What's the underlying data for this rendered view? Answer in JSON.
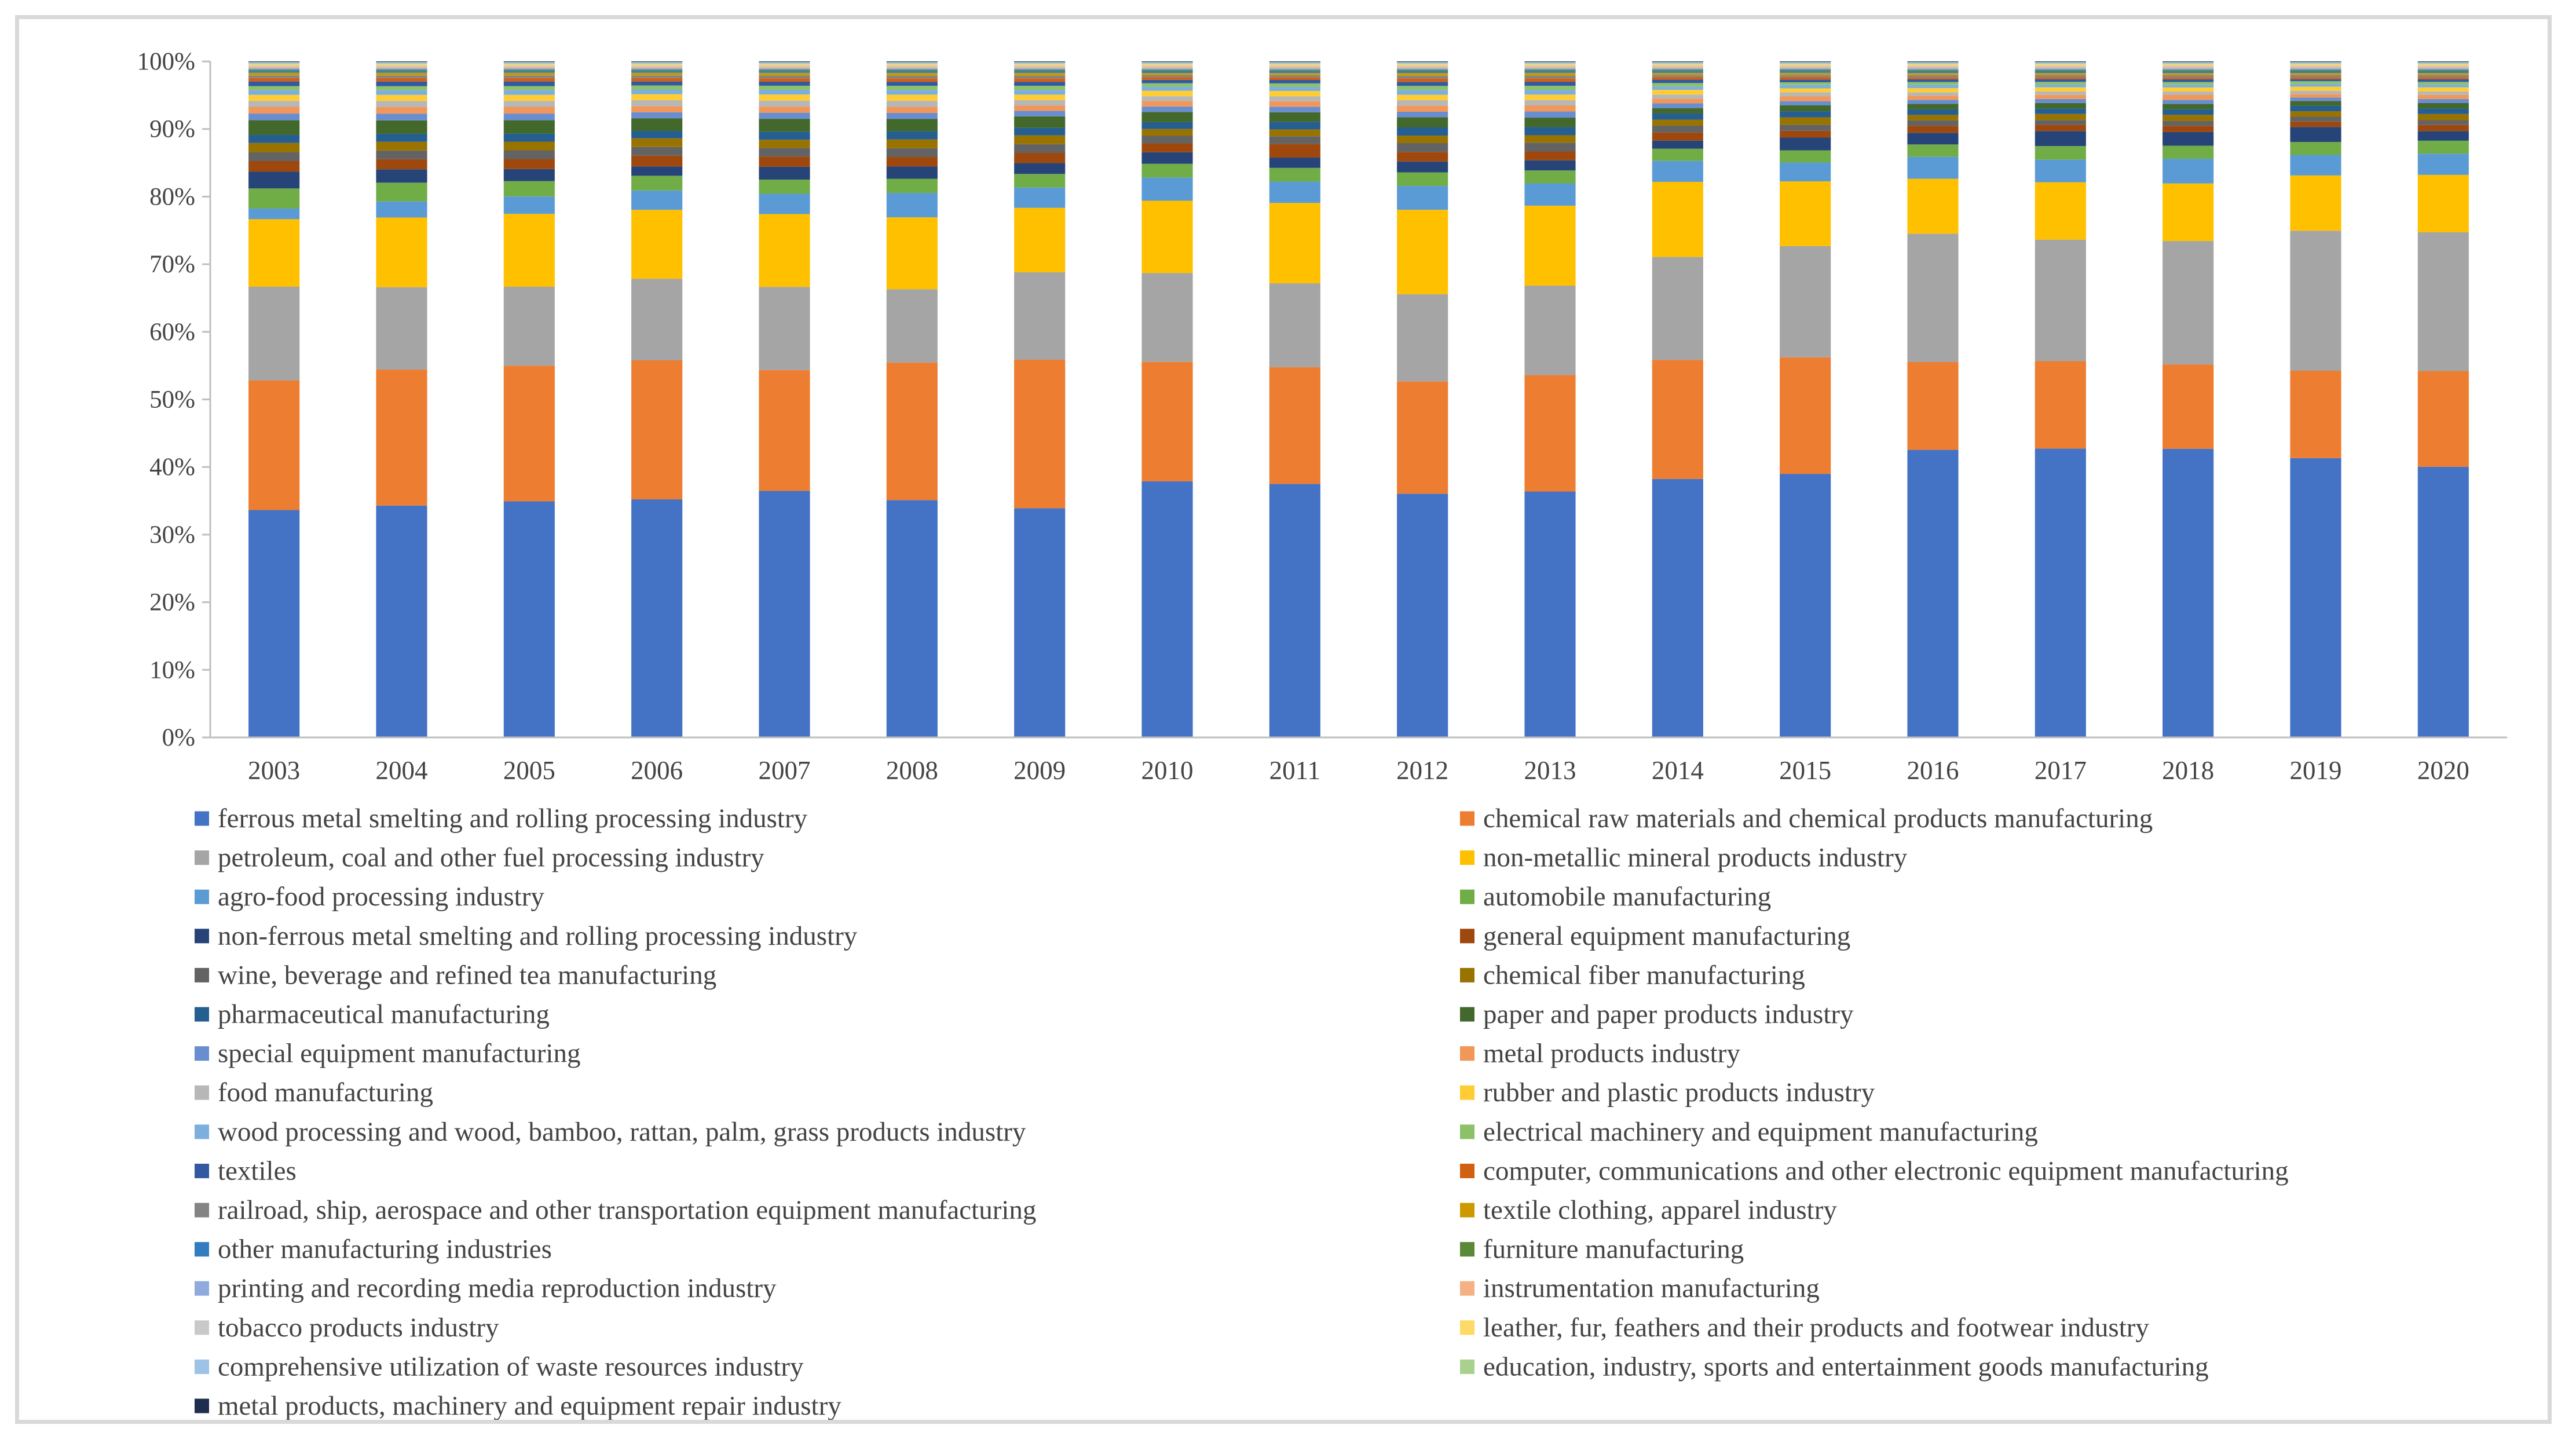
{
  "chart_data": {
    "type": "bar",
    "stacked": "percent",
    "title": "",
    "xlabel": "",
    "ylabel": "",
    "ylim": [
      0,
      100
    ],
    "y_ticks": [
      "0%",
      "10%",
      "20%",
      "30%",
      "40%",
      "50%",
      "60%",
      "70%",
      "80%",
      "90%",
      "100%"
    ],
    "categories": [
      "2003",
      "2004",
      "2005",
      "2006",
      "2007",
      "2008",
      "2009",
      "2010",
      "2011",
      "2012",
      "2013",
      "2014",
      "2015",
      "2016",
      "2017",
      "2018",
      "2019",
      "2020"
    ],
    "series": [
      {
        "name": "ferrous metal smelting and rolling processing industry",
        "color": "#4472c4",
        "values": [
          34.0,
          34.6,
          35.3,
          35.6,
          36.5,
          35.0,
          33.8,
          37.5,
          36.9,
          35.8,
          36.3,
          38.2,
          39.1,
          41.9,
          42.3,
          42.1,
          40.9,
          39.6
        ]
      },
      {
        "name": "chemical raw materials and chemical products manufacturing",
        "color": "#ed7d31",
        "values": [
          19.4,
          20.3,
          20.3,
          20.8,
          17.9,
          20.3,
          21.9,
          17.5,
          17.0,
          16.5,
          17.2,
          17.6,
          17.3,
          12.8,
          12.8,
          12.3,
          12.8,
          14.0
        ]
      },
      {
        "name": "petroleum, coal and other fuel processing industry",
        "color": "#a5a5a5",
        "values": [
          14.0,
          12.3,
          11.8,
          12.2,
          12.3,
          10.8,
          12.9,
          13.0,
          12.2,
          12.8,
          13.2,
          15.2,
          16.5,
          18.7,
          17.8,
          18.0,
          20.5,
          20.3
        ]
      },
      {
        "name": "non-metallic mineral products industry",
        "color": "#ffc000",
        "values": [
          10.1,
          10.4,
          10.9,
          10.3,
          10.8,
          10.6,
          9.5,
          10.6,
          11.7,
          12.4,
          11.8,
          11.1,
          9.6,
          8.0,
          8.4,
          8.4,
          8.1,
          8.4
        ]
      },
      {
        "name": "agro-food processing industry",
        "color": "#5b9bd5",
        "values": [
          1.6,
          2.4,
          2.6,
          2.9,
          3.0,
          3.6,
          3.0,
          3.4,
          3.1,
          3.5,
          3.3,
          3.1,
          2.8,
          3.2,
          3.3,
          3.6,
          3.0,
          3.1
        ]
      },
      {
        "name": "automobile manufacturing",
        "color": "#70ad47",
        "values": [
          3.0,
          2.8,
          2.3,
          2.2,
          2.1,
          2.1,
          2.0,
          2.0,
          2.0,
          2.0,
          1.9,
          1.8,
          1.8,
          1.8,
          2.0,
          1.9,
          1.9,
          1.9
        ]
      },
      {
        "name": "non-ferrous metal smelting and rolling processing industry",
        "color": "#264478",
        "values": [
          2.5,
          2.0,
          1.8,
          1.4,
          1.9,
          1.8,
          1.6,
          1.7,
          1.5,
          1.6,
          1.5,
          1.2,
          1.9,
          1.7,
          2.2,
          2.0,
          2.2,
          1.4
        ]
      },
      {
        "name": "general equipment manufacturing",
        "color": "#9e480e",
        "values": [
          1.6,
          1.5,
          1.5,
          1.6,
          1.5,
          1.4,
          1.5,
          1.3,
          2.0,
          1.4,
          1.3,
          1.2,
          1.0,
          1.0,
          0.9,
          0.9,
          0.8,
          0.9
        ]
      },
      {
        "name": "wine, beverage and refined tea manufacturing",
        "color": "#636363",
        "values": [
          1.3,
          1.3,
          1.3,
          1.3,
          1.3,
          1.3,
          1.3,
          1.1,
          1.1,
          1.3,
          1.3,
          1.0,
          0.9,
          0.8,
          0.7,
          0.7,
          0.7,
          0.7
        ]
      },
      {
        "name": "chemical fiber manufacturing",
        "color": "#997300",
        "values": [
          1.4,
          1.3,
          1.3,
          1.3,
          1.2,
          1.3,
          1.3,
          1.0,
          1.0,
          1.1,
          1.1,
          0.9,
          1.1,
          0.8,
          0.9,
          0.9,
          0.8,
          0.9
        ]
      },
      {
        "name": "pharmaceutical manufacturing",
        "color": "#255e91",
        "values": [
          1.2,
          1.2,
          1.2,
          1.1,
          1.2,
          1.2,
          1.1,
          1.0,
          1.1,
          1.2,
          1.2,
          0.9,
          0.9,
          0.8,
          0.8,
          0.8,
          0.8,
          0.8
        ]
      },
      {
        "name": "paper and paper products industry",
        "color": "#43682b",
        "values": [
          2.2,
          2.0,
          2.0,
          1.9,
          1.9,
          1.8,
          1.7,
          1.5,
          1.4,
          1.5,
          1.4,
          0.8,
          0.9,
          0.8,
          0.8,
          0.8,
          0.7,
          0.8
        ]
      },
      {
        "name": "special equipment manufacturing",
        "color": "#698ed0",
        "values": [
          1.0,
          1.0,
          1.0,
          0.9,
          0.9,
          0.9,
          0.8,
          0.8,
          0.8,
          0.8,
          0.9,
          0.7,
          0.6,
          0.6,
          0.6,
          0.6,
          0.5,
          0.6
        ]
      },
      {
        "name": "metal products industry",
        "color": "#f1975a",
        "values": [
          1.0,
          1.0,
          1.0,
          0.9,
          0.9,
          0.9,
          0.8,
          0.8,
          0.8,
          0.9,
          0.9,
          0.7,
          0.7,
          0.6,
          0.6,
          0.7,
          0.5,
          0.6
        ]
      },
      {
        "name": "food manufacturing",
        "color": "#b7b7b7",
        "values": [
          0.9,
          0.9,
          0.9,
          0.9,
          0.9,
          0.9,
          0.8,
          0.7,
          0.7,
          0.8,
          0.8,
          0.6,
          0.6,
          0.5,
          0.5,
          0.5,
          0.5,
          0.5
        ]
      },
      {
        "name": "rubber and plastic products industry",
        "color": "#ffcd33",
        "values": [
          0.9,
          0.9,
          0.9,
          0.9,
          0.9,
          0.9,
          0.8,
          0.8,
          0.8,
          0.8,
          0.8,
          0.7,
          0.6,
          0.6,
          0.6,
          0.6,
          0.6,
          0.6
        ]
      },
      {
        "name": "wood processing and wood, bamboo, rattan, palm, grass products industry",
        "color": "#7cafdd",
        "values": [
          0.7,
          0.7,
          0.7,
          0.7,
          0.7,
          0.7,
          0.7,
          0.6,
          0.6,
          0.7,
          0.7,
          0.5,
          0.5,
          0.5,
          0.4,
          0.4,
          0.4,
          0.4
        ]
      },
      {
        "name": "electrical machinery and equipment manufacturing",
        "color": "#8cc168",
        "values": [
          0.6,
          0.6,
          0.6,
          0.6,
          0.6,
          0.6,
          0.6,
          0.5,
          0.5,
          0.6,
          0.6,
          0.5,
          0.4,
          0.4,
          0.4,
          0.4,
          0.4,
          0.4
        ]
      },
      {
        "name": "textiles",
        "color": "#335aa1",
        "values": [
          0.7,
          0.7,
          0.7,
          0.6,
          0.6,
          0.6,
          0.6,
          0.5,
          0.5,
          0.6,
          0.6,
          0.5,
          0.4,
          0.4,
          0.4,
          0.4,
          0.3,
          0.4
        ]
      },
      {
        "name": "computer, communications and other electronic equipment manufacturing",
        "color": "#d26012",
        "values": [
          0.5,
          0.5,
          0.5,
          0.5,
          0.5,
          0.5,
          0.5,
          0.4,
          0.4,
          0.5,
          0.5,
          0.4,
          0.4,
          0.3,
          0.3,
          0.3,
          0.3,
          0.3
        ]
      },
      {
        "name": "railroad, ship, aerospace and other transportation equipment manufacturing",
        "color": "#848484",
        "values": [
          0.4,
          0.4,
          0.4,
          0.4,
          0.4,
          0.4,
          0.4,
          0.3,
          0.3,
          0.4,
          0.4,
          0.3,
          0.3,
          0.3,
          0.3,
          0.3,
          0.3,
          0.3
        ]
      },
      {
        "name": "textile clothing, apparel industry",
        "color": "#cc9a00",
        "values": [
          0.4,
          0.4,
          0.4,
          0.4,
          0.4,
          0.4,
          0.4,
          0.3,
          0.3,
          0.4,
          0.4,
          0.3,
          0.3,
          0.3,
          0.3,
          0.3,
          0.3,
          0.3
        ]
      },
      {
        "name": "other manufacturing industries",
        "color": "#327dc2",
        "values": [
          0.3,
          0.3,
          0.3,
          0.3,
          0.3,
          0.3,
          0.3,
          0.3,
          0.3,
          0.3,
          0.3,
          0.3,
          0.3,
          0.3,
          0.3,
          0.3,
          0.3,
          0.3
        ]
      },
      {
        "name": "furniture manufacturing",
        "color": "#5a8a39",
        "values": [
          0.2,
          0.2,
          0.2,
          0.2,
          0.2,
          0.2,
          0.2,
          0.2,
          0.2,
          0.2,
          0.2,
          0.2,
          0.2,
          0.2,
          0.2,
          0.2,
          0.2,
          0.2
        ]
      },
      {
        "name": "printing and recording media reproduction industry",
        "color": "#8faadc",
        "values": [
          0.2,
          0.2,
          0.2,
          0.2,
          0.2,
          0.2,
          0.2,
          0.2,
          0.2,
          0.2,
          0.2,
          0.2,
          0.2,
          0.2,
          0.2,
          0.2,
          0.2,
          0.2
        ]
      },
      {
        "name": "instrumentation manufacturing",
        "color": "#f4b183",
        "values": [
          0.2,
          0.2,
          0.2,
          0.2,
          0.2,
          0.2,
          0.2,
          0.2,
          0.2,
          0.2,
          0.2,
          0.2,
          0.2,
          0.2,
          0.2,
          0.2,
          0.2,
          0.2
        ]
      },
      {
        "name": "tobacco products industry",
        "color": "#c9c9c9",
        "values": [
          0.2,
          0.2,
          0.2,
          0.2,
          0.2,
          0.2,
          0.2,
          0.2,
          0.2,
          0.2,
          0.2,
          0.2,
          0.2,
          0.2,
          0.2,
          0.2,
          0.2,
          0.2
        ]
      },
      {
        "name": "leather, fur, feathers and their products and footwear industry",
        "color": "#ffd966",
        "values": [
          0.2,
          0.2,
          0.2,
          0.2,
          0.2,
          0.2,
          0.2,
          0.2,
          0.2,
          0.2,
          0.2,
          0.2,
          0.2,
          0.2,
          0.2,
          0.2,
          0.2,
          0.2
        ]
      },
      {
        "name": "comprehensive utilization of waste resources industry",
        "color": "#9dc3e6",
        "values": [
          0.2,
          0.2,
          0.2,
          0.2,
          0.2,
          0.2,
          0.2,
          0.2,
          0.2,
          0.2,
          0.2,
          0.2,
          0.2,
          0.2,
          0.2,
          0.2,
          0.2,
          0.2
        ]
      },
      {
        "name": "education, industry, sports and entertainment goods manufacturing",
        "color": "#a9d18e",
        "values": [
          0.1,
          0.1,
          0.1,
          0.1,
          0.1,
          0.1,
          0.1,
          0.1,
          0.1,
          0.1,
          0.1,
          0.1,
          0.1,
          0.1,
          0.1,
          0.1,
          0.1,
          0.1
        ]
      },
      {
        "name": "metal products, machinery and equipment repair industry",
        "color": "#1f2d4f",
        "values": [
          0.1,
          0.1,
          0.1,
          0.1,
          0.1,
          0.1,
          0.1,
          0.1,
          0.1,
          0.1,
          0.1,
          0.1,
          0.1,
          0.1,
          0.1,
          0.1,
          0.1,
          0.1
        ]
      }
    ],
    "legend_position": "bottom",
    "grid": false
  }
}
